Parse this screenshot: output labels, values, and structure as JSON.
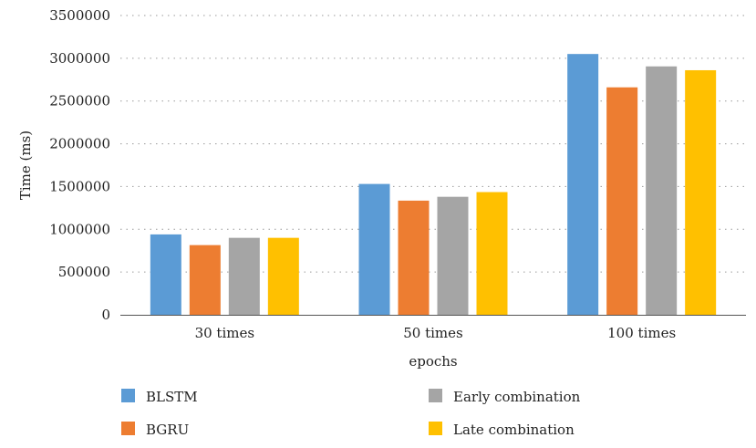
{
  "chart_data": {
    "type": "bar",
    "categories": [
      "30 times",
      "50 times",
      "100 times"
    ],
    "series": [
      {
        "name": "BLSTM",
        "values": [
          940000,
          1530000,
          3050000
        ],
        "color": "#5b9bd5"
      },
      {
        "name": "BGRU",
        "values": [
          815000,
          1335000,
          2660000
        ],
        "color": "#ed7d31"
      },
      {
        "name": "Early combination",
        "values": [
          900000,
          1380000,
          2905000
        ],
        "color": "#a5a5a5"
      },
      {
        "name": "Late combination",
        "values": [
          900000,
          1435000,
          2860000
        ],
        "color": "#ffc000"
      }
    ],
    "xlabel": "epochs",
    "ylabel": "Time (ms)",
    "ylim": [
      0,
      3500000
    ],
    "yticks": [
      "0",
      "500000",
      "1000000",
      "1500000",
      "2000000",
      "2500000",
      "3000000",
      "3500000"
    ],
    "grid": true,
    "legend": "bottom"
  }
}
